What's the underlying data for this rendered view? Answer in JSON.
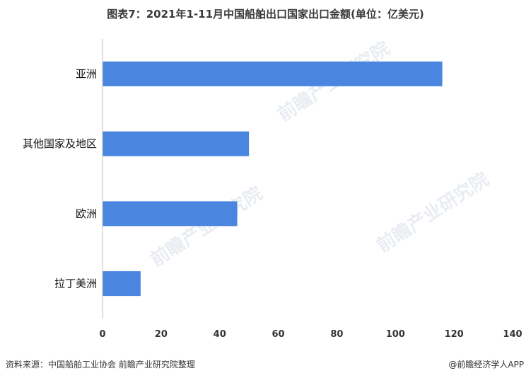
{
  "title": "图表7：2021年1-11月中国船舶出口国家出口金额(单位：亿美元)",
  "source": "资料来源：中国船舶工业协会 前瞻产业研究院整理",
  "credit": "@前瞻经济学人APP",
  "watermark": "前瞻产业研究院",
  "colors": {
    "bar": "#4a86e0",
    "axis": "#bfbfbf"
  },
  "chart_data": {
    "type": "bar",
    "orientation": "horizontal",
    "categories": [
      "亚洲",
      "其他国家及地区",
      "欧洲",
      "拉丁美洲"
    ],
    "values": [
      116,
      50,
      46,
      13
    ],
    "xlim": [
      0,
      140
    ],
    "xticks": [
      0,
      20,
      40,
      60,
      80,
      100,
      120,
      140
    ],
    "grid": false,
    "legend": "none"
  }
}
